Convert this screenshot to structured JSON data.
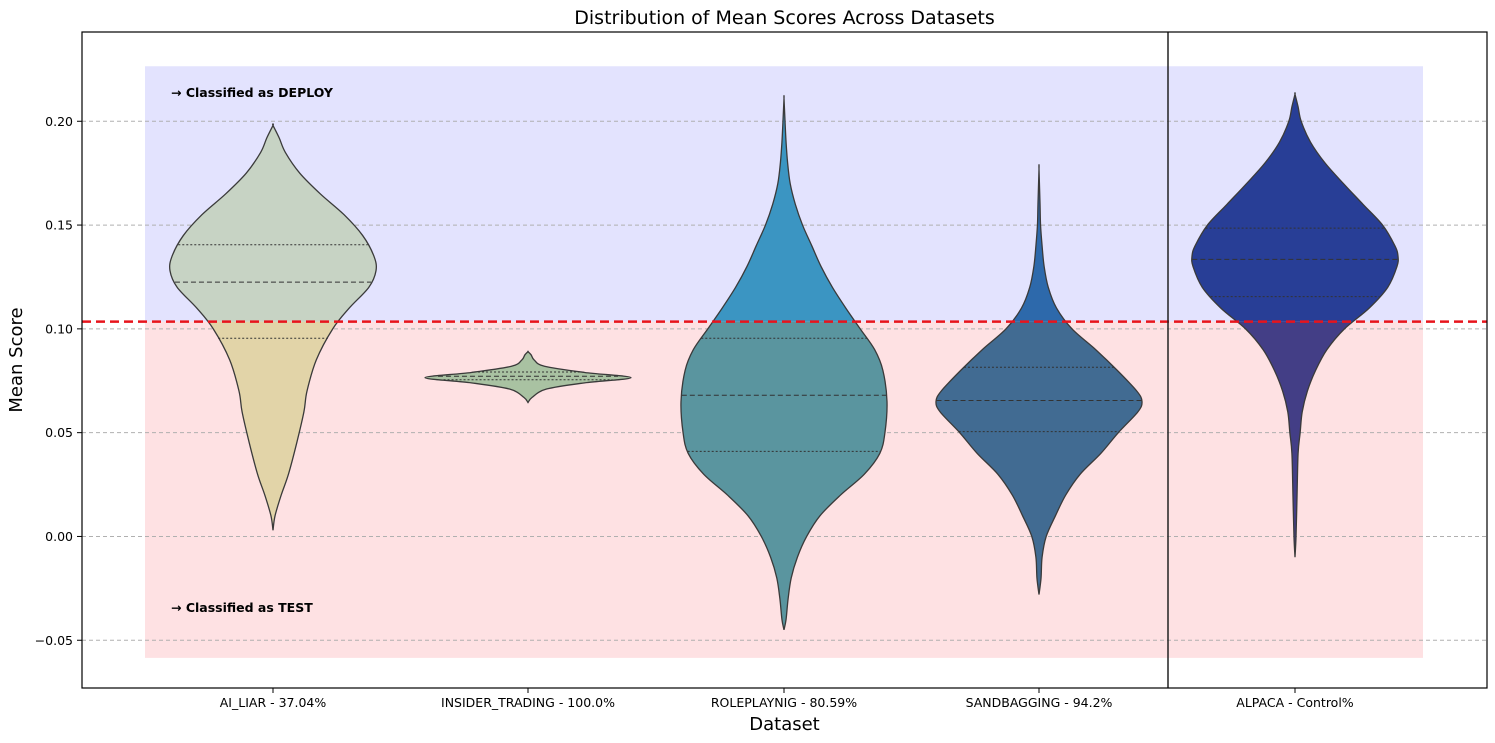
{
  "chart_data": {
    "type": "violin",
    "title": "Distribution of Mean Scores Across Datasets",
    "xlabel": "Dataset",
    "ylabel": "Mean Score",
    "ylim": [
      -0.073,
      0.243
    ],
    "yticks": [
      -0.05,
      0.0,
      0.05,
      0.1,
      0.15,
      0.2
    ],
    "ytick_labels": [
      "−0.05",
      "0.00",
      "0.05",
      "0.10",
      "0.15",
      "0.20"
    ],
    "grid": "horizontal-dashed",
    "threshold": {
      "value": 0.1035,
      "color": "#e8141c",
      "style": "dashed"
    },
    "regions": {
      "deploy": {
        "label": "→ Classified as DEPLOY",
        "from": 0.1035,
        "to": 0.2265,
        "color": "#e3e3fe"
      },
      "test": {
        "label": "→ Classified as TEST",
        "from": -0.0585,
        "to": 0.1035,
        "color": "#fee1e3"
      }
    },
    "separator_after_index": 3,
    "categories": [
      "AI_LIAR - 37.04%",
      "INSIDER_TRADING - 100.0%",
      "ROLEPLAYNIG - 80.59%",
      "SANDBAGGING - 94.2%",
      "ALPACA - Control%"
    ],
    "series": [
      {
        "name": "AI_LIAR",
        "color_above": "#c7d3c4",
        "color_below": "#e2d4a8",
        "profile": [
          [
            0.003,
            0.0
          ],
          [
            0.01,
            0.02
          ],
          [
            0.02,
            0.08
          ],
          [
            0.03,
            0.15
          ],
          [
            0.045,
            0.23
          ],
          [
            0.06,
            0.3
          ],
          [
            0.07,
            0.33
          ],
          [
            0.085,
            0.42
          ],
          [
            0.1,
            0.58
          ],
          [
            0.11,
            0.74
          ],
          [
            0.12,
            0.93
          ],
          [
            0.128,
            1.0
          ],
          [
            0.135,
            0.98
          ],
          [
            0.145,
            0.87
          ],
          [
            0.155,
            0.69
          ],
          [
            0.165,
            0.46
          ],
          [
            0.175,
            0.26
          ],
          [
            0.185,
            0.12
          ],
          [
            0.192,
            0.06
          ],
          [
            0.198,
            0.0
          ]
        ],
        "quartiles": [
          0.0955,
          0.1225,
          0.1405
        ]
      },
      {
        "name": "INSIDER_TRADING",
        "color_above": "#a9c2a2",
        "color_below": "#a9c2a2",
        "profile": [
          [
            0.0645,
            0.0
          ],
          [
            0.067,
            0.04
          ],
          [
            0.071,
            0.18
          ],
          [
            0.074,
            0.55
          ],
          [
            0.0765,
            1.0
          ],
          [
            0.079,
            0.55
          ],
          [
            0.082,
            0.16
          ],
          [
            0.085,
            0.06
          ],
          [
            0.0875,
            0.03
          ],
          [
            0.089,
            0.0
          ]
        ],
        "quartiles": [
          0.0755,
          0.0772,
          0.0792
        ]
      },
      {
        "name": "ROLEPLAYNIG",
        "color_above": "#3b95c2",
        "color_below": "#5a959f",
        "profile": [
          [
            -0.045,
            0.0
          ],
          [
            -0.04,
            0.02
          ],
          [
            -0.03,
            0.04
          ],
          [
            -0.02,
            0.07
          ],
          [
            -0.01,
            0.13
          ],
          [
            0.0,
            0.22
          ],
          [
            0.01,
            0.35
          ],
          [
            0.02,
            0.55
          ],
          [
            0.03,
            0.78
          ],
          [
            0.04,
            0.93
          ],
          [
            0.05,
            0.98
          ],
          [
            0.065,
            1.0
          ],
          [
            0.08,
            0.96
          ],
          [
            0.09,
            0.88
          ],
          [
            0.1,
            0.74
          ],
          [
            0.11,
            0.6
          ],
          [
            0.12,
            0.47
          ],
          [
            0.13,
            0.36
          ],
          [
            0.14,
            0.27
          ],
          [
            0.15,
            0.18
          ],
          [
            0.16,
            0.11
          ],
          [
            0.17,
            0.06
          ],
          [
            0.18,
            0.035
          ],
          [
            0.19,
            0.02
          ],
          [
            0.2,
            0.01
          ],
          [
            0.211,
            0.0
          ]
        ],
        "quartiles": [
          0.041,
          0.068,
          0.0955
        ]
      },
      {
        "name": "SANDBAGGING",
        "color_above": "#2d69ab",
        "color_below": "#416b92",
        "profile": [
          [
            -0.028,
            0.0
          ],
          [
            -0.02,
            0.02
          ],
          [
            -0.01,
            0.03
          ],
          [
            0.0,
            0.07
          ],
          [
            0.01,
            0.16
          ],
          [
            0.02,
            0.26
          ],
          [
            0.03,
            0.4
          ],
          [
            0.04,
            0.6
          ],
          [
            0.05,
            0.77
          ],
          [
            0.06,
            0.96
          ],
          [
            0.065,
            1.0
          ],
          [
            0.07,
            0.95
          ],
          [
            0.08,
            0.76
          ],
          [
            0.09,
            0.55
          ],
          [
            0.1,
            0.32
          ],
          [
            0.11,
            0.17
          ],
          [
            0.12,
            0.09
          ],
          [
            0.13,
            0.05
          ],
          [
            0.14,
            0.03
          ],
          [
            0.15,
            0.015
          ],
          [
            0.16,
            0.01
          ],
          [
            0.177,
            0.0
          ]
        ],
        "quartiles": [
          0.0505,
          0.0655,
          0.0815
        ]
      },
      {
        "name": "ALPACA",
        "color_above": "#283e96",
        "color_below": "#433e86",
        "profile": [
          [
            -0.01,
            0.0
          ],
          [
            0.0,
            0.01
          ],
          [
            0.02,
            0.02
          ],
          [
            0.04,
            0.03
          ],
          [
            0.05,
            0.05
          ],
          [
            0.06,
            0.07
          ],
          [
            0.07,
            0.12
          ],
          [
            0.08,
            0.2
          ],
          [
            0.09,
            0.31
          ],
          [
            0.1,
            0.48
          ],
          [
            0.11,
            0.72
          ],
          [
            0.12,
            0.9
          ],
          [
            0.13,
            0.99
          ],
          [
            0.135,
            1.0
          ],
          [
            0.14,
            0.97
          ],
          [
            0.15,
            0.85
          ],
          [
            0.16,
            0.66
          ],
          [
            0.17,
            0.47
          ],
          [
            0.18,
            0.29
          ],
          [
            0.19,
            0.15
          ],
          [
            0.2,
            0.06
          ],
          [
            0.207,
            0.03
          ],
          [
            0.213,
            0.0
          ]
        ],
        "quartiles": [
          0.1155,
          0.1335,
          0.1485
        ]
      }
    ]
  }
}
